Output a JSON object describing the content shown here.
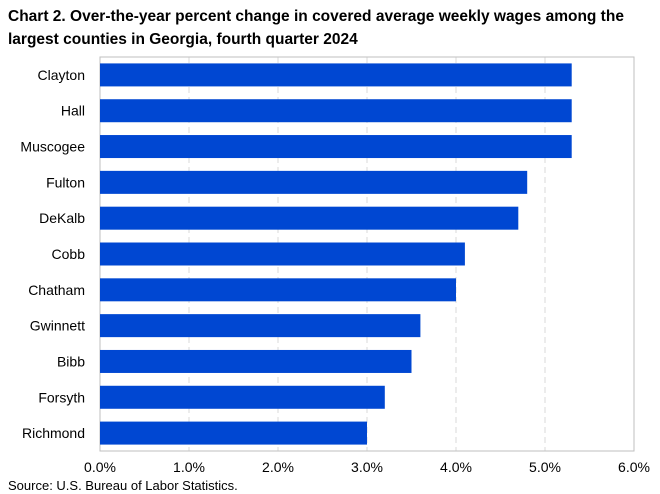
{
  "chart_data": {
    "type": "bar",
    "orientation": "horizontal",
    "title": "Chart 2. Over-the-year percent change in covered average weekly wages among the largest counties in Georgia, fourth quarter 2024",
    "source": "Source: U.S. Bureau of Labor Statistics.",
    "categories": [
      "Clayton",
      "Hall",
      "Muscogee",
      "Fulton",
      "DeKalb",
      "Cobb",
      "Chatham",
      "Gwinnett",
      "Bibb",
      "Forsyth",
      "Richmond"
    ],
    "values": [
      5.3,
      5.3,
      5.3,
      4.8,
      4.7,
      4.1,
      4.0,
      3.6,
      3.5,
      3.2,
      3.0
    ],
    "xlim": [
      0,
      6
    ],
    "xticks": [
      0,
      1,
      2,
      3,
      4,
      5,
      6
    ],
    "xtick_labels": [
      "0.0%",
      "1.0%",
      "2.0%",
      "3.0%",
      "4.0%",
      "5.0%",
      "6.0%"
    ],
    "xlabel": "",
    "ylabel": "",
    "grid": "vertical-dashed",
    "legend": "none",
    "bar_color": "#0047d2",
    "grid_color": "#d9d9d9",
    "frame_color": "#bfbfbf"
  }
}
